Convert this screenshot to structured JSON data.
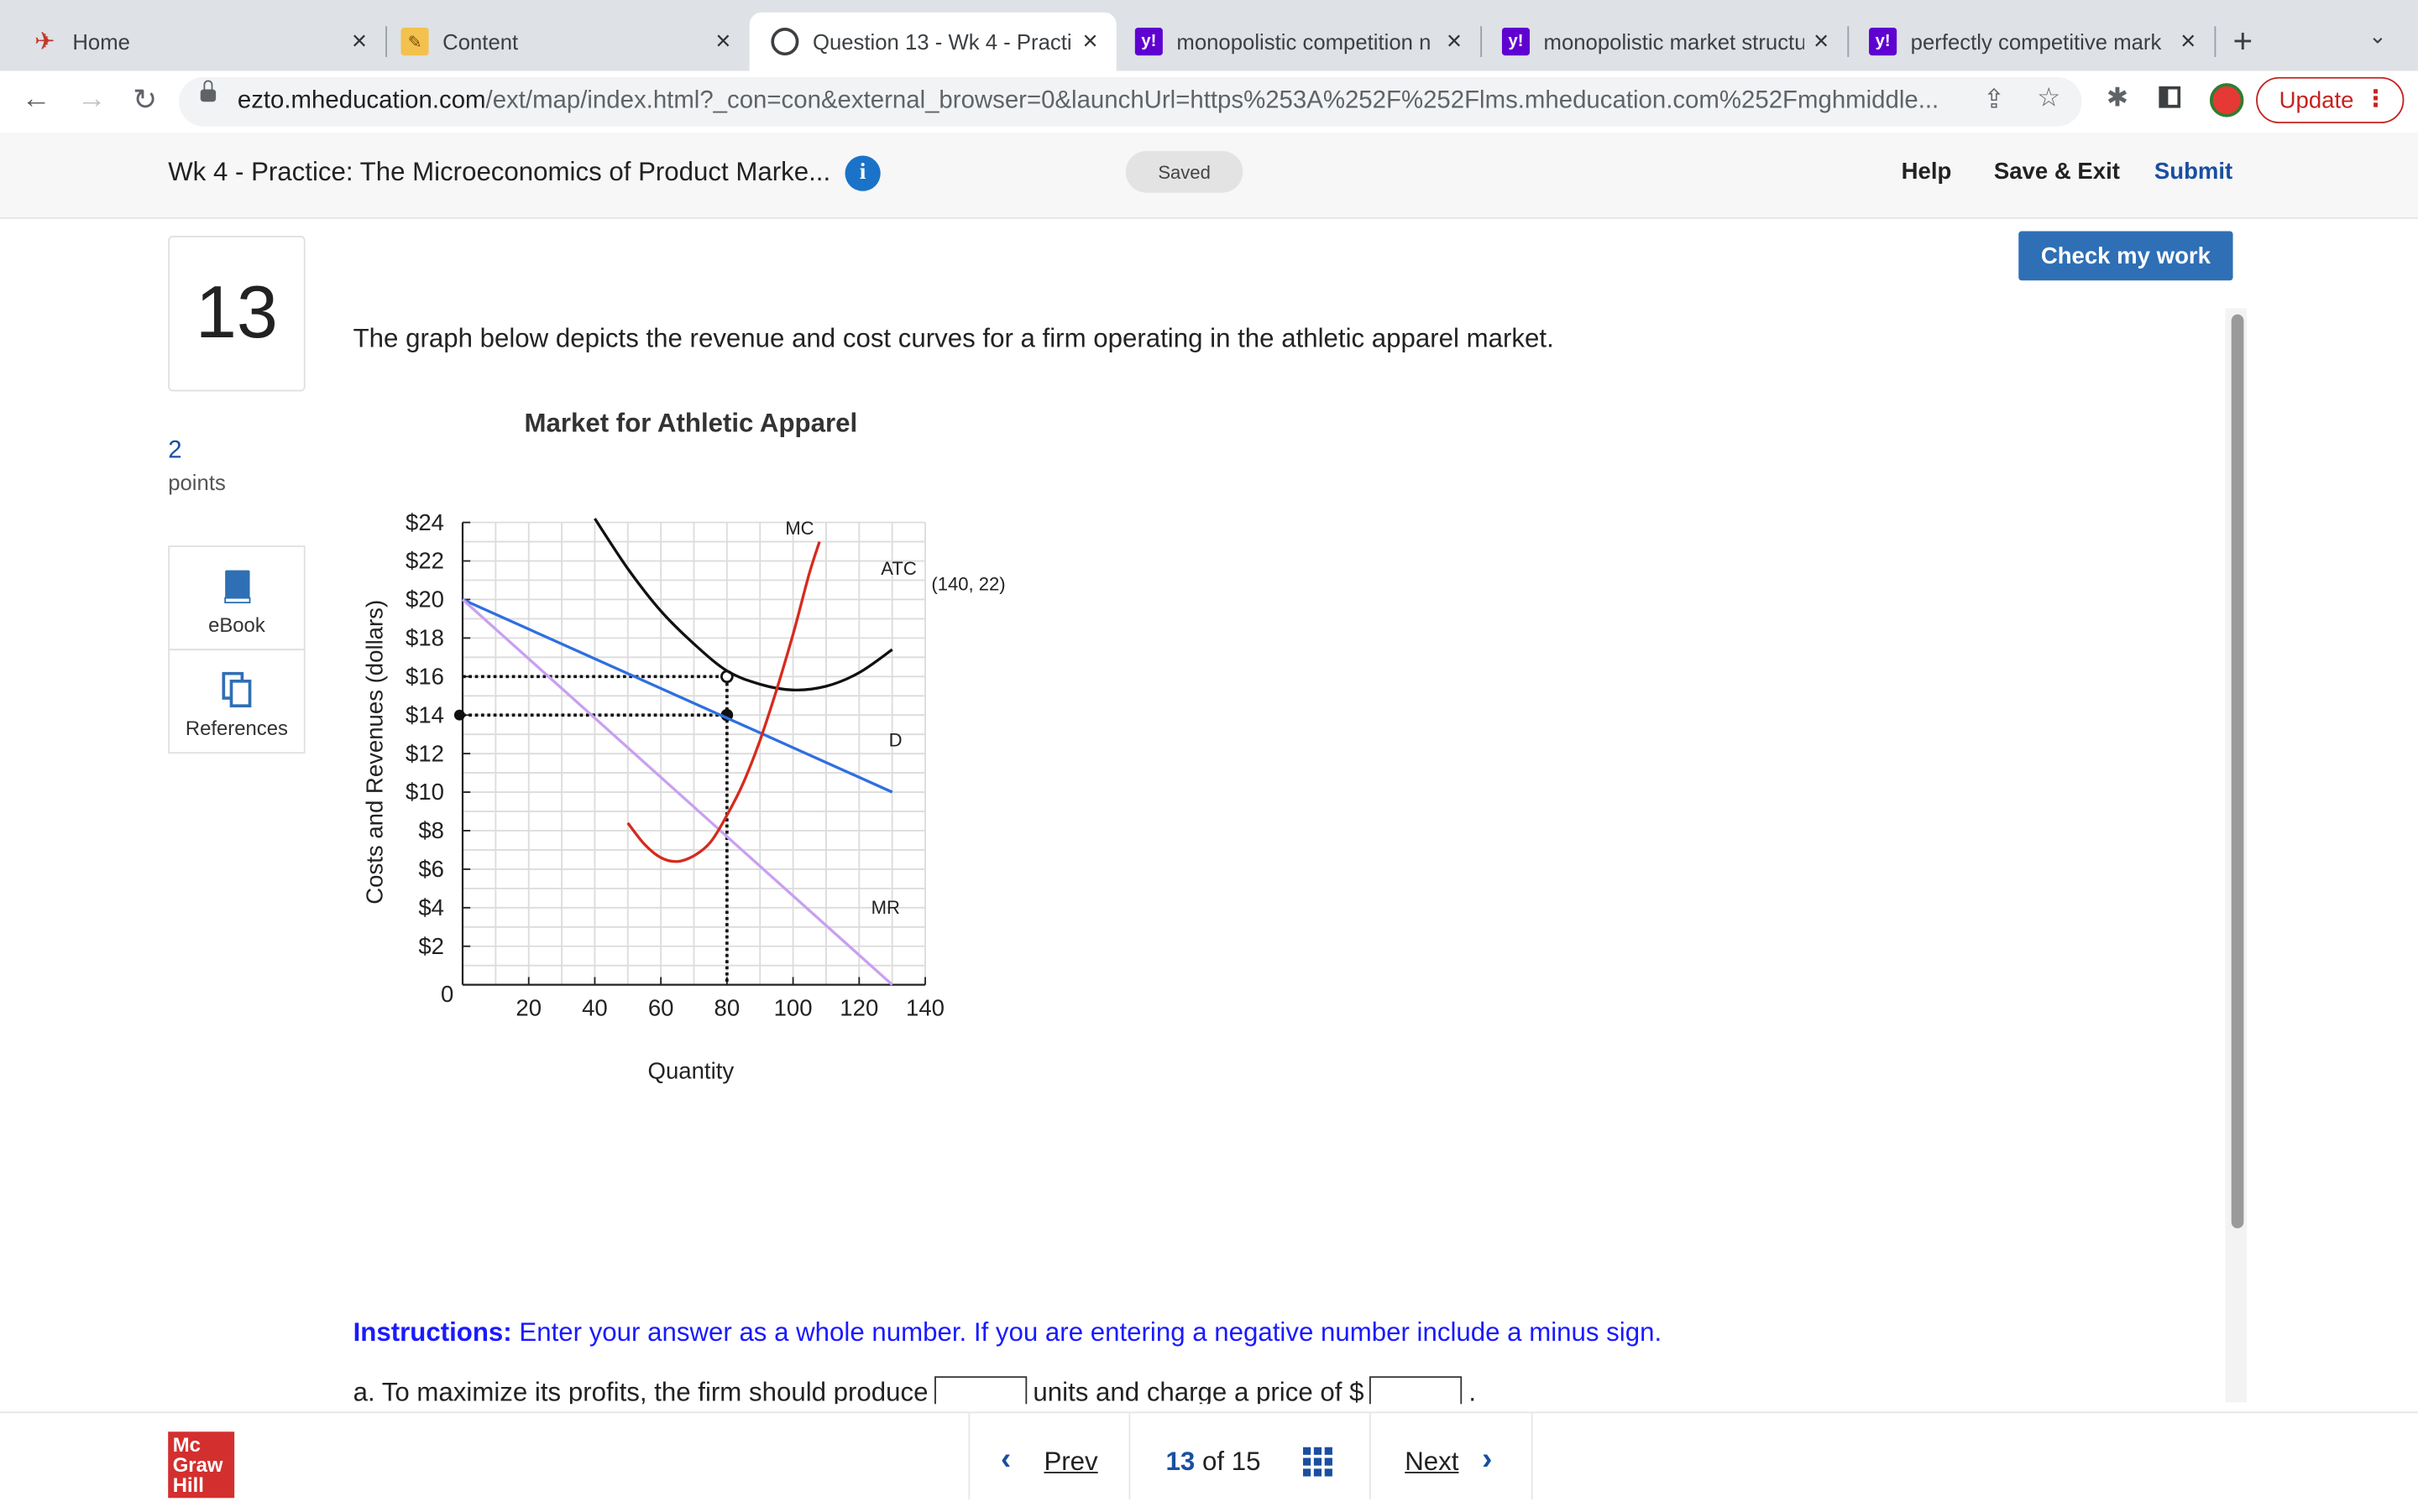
{
  "browser": {
    "tabs": [
      {
        "title": "Home"
      },
      {
        "title": "Content"
      },
      {
        "title": "Question 13 - Wk 4 - Practi"
      },
      {
        "title": "monopolistic competition n"
      },
      {
        "title": "monopolistic market structu"
      },
      {
        "title": "perfectly competitive mark"
      }
    ],
    "url_host": "ezto.mheducation.com",
    "url_rest": "/ext/map/index.html?_con=con&external_browser=0&launchUrl=https%253A%252F%252Flms.mheducation.com%252Fmghmiddle...",
    "update_label": "Update"
  },
  "header": {
    "assignment_title": "Wk 4 - Practice: The Microeconomics of Product Marke...",
    "info_glyph": "i",
    "saved": "Saved",
    "help": "Help",
    "save_exit": "Save & Exit",
    "submit": "Submit"
  },
  "question": {
    "number": "13",
    "points_value": "2",
    "points_label": "points",
    "ebook": "eBook",
    "references": "References",
    "check_my_work": "Check my work",
    "prompt": "The graph below depicts the revenue and cost curves for a firm operating in the athletic apparel market.",
    "instructions_label": "Instructions:",
    "instructions_text": "Enter your answer as a whole number. If you are entering a negative number include a minus sign.",
    "part_a_1": "a. To maximize its profits, the firm should produce",
    "part_a_2": "units and charge a price of $",
    "part_a_3": "."
  },
  "chart_data": {
    "type": "line",
    "title": "Market for Athletic Apparel",
    "xlabel": "Quantity",
    "ylabel": "Costs and Revenues (dollars)",
    "xlim": [
      0,
      140
    ],
    "ylim": [
      0,
      24
    ],
    "x_ticks": [
      20,
      40,
      60,
      80,
      100,
      120,
      140
    ],
    "y_ticks": [
      2,
      4,
      6,
      8,
      10,
      12,
      14,
      16,
      18,
      20,
      22,
      24
    ],
    "x_tick_labels": [
      "20",
      "40",
      "60",
      "80",
      "100",
      "120",
      "140"
    ],
    "y_tick_labels": [
      "$2",
      "$4",
      "$6",
      "$8",
      "$10",
      "$12",
      "$14",
      "$16",
      "$18",
      "$20",
      "$22",
      "$24"
    ],
    "origin_label": "0",
    "grid": true,
    "series": [
      {
        "name": "D",
        "color": "#2f6fe0",
        "points": [
          [
            0,
            20
          ],
          [
            130,
            10
          ]
        ]
      },
      {
        "name": "MR",
        "color": "#c9a0f0",
        "points": [
          [
            0,
            20
          ],
          [
            130,
            0
          ]
        ]
      },
      {
        "name": "ATC",
        "color": "#111111",
        "points": [
          [
            40,
            24.2
          ],
          [
            50,
            21.6
          ],
          [
            60,
            19.4
          ],
          [
            70,
            17.7
          ],
          [
            80,
            16.3
          ],
          [
            90,
            15.6
          ],
          [
            100,
            15.3
          ],
          [
            110,
            15.5
          ],
          [
            120,
            16.2
          ],
          [
            130,
            17.4
          ]
        ]
      },
      {
        "name": "MC",
        "color": "#d62a1e",
        "points": [
          [
            50,
            8.4
          ],
          [
            55,
            7.3
          ],
          [
            60,
            6.6
          ],
          [
            65,
            6.4
          ],
          [
            70,
            6.7
          ],
          [
            75,
            7.4
          ],
          [
            80,
            8.8
          ],
          [
            85,
            10.5
          ],
          [
            90,
            12.7
          ],
          [
            95,
            15.3
          ],
          [
            100,
            18.2
          ],
          [
            105,
            21.4
          ],
          [
            108,
            23.0
          ]
        ]
      }
    ],
    "guides": [
      {
        "x": 80,
        "y": 16
      },
      {
        "x": 80,
        "y": 14
      }
    ],
    "annotation": "(140, 22)"
  },
  "footer": {
    "logo_lines": [
      "Mc",
      "Graw",
      "Hill"
    ],
    "prev": "Prev",
    "current": "13",
    "of": "of",
    "total": "15",
    "next": "Next"
  }
}
